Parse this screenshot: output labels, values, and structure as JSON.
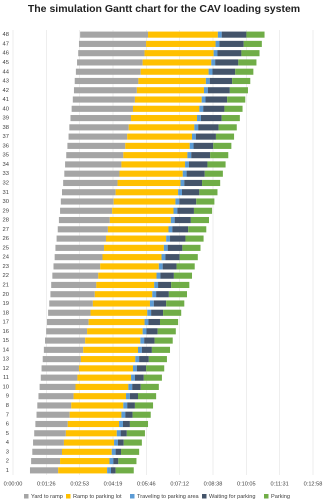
{
  "chart_data": {
    "type": "gantt",
    "title": "The simulation Gantt chart for the CAV loading system",
    "categories": [
      "1",
      "2",
      "3",
      "4",
      "5",
      "6",
      "7",
      "8",
      "9",
      "10",
      "11",
      "12",
      "13",
      "14",
      "15",
      "16",
      "17",
      "18",
      "19",
      "20",
      "21",
      "22",
      "23",
      "24",
      "25",
      "26",
      "27",
      "28",
      "29",
      "30",
      "31",
      "32",
      "33",
      "34",
      "35",
      "36",
      "37",
      "38",
      "39",
      "40",
      "41",
      "42",
      "43",
      "44",
      "45",
      "46",
      "47",
      "48"
    ],
    "start": [
      44,
      47,
      50,
      52,
      55,
      58,
      61,
      63,
      66,
      69,
      72,
      74,
      77,
      80,
      83,
      86,
      88,
      91,
      94,
      97,
      99,
      102,
      105,
      108,
      110,
      113,
      116,
      119,
      122,
      124,
      127,
      130,
      133,
      135,
      138,
      141,
      144,
      146,
      149,
      152,
      155,
      158,
      160,
      163,
      166,
      169,
      171,
      174
    ],
    "series": [
      {
        "name": "Yard to ramp",
        "color": "#a5a5a5",
        "values": [
          73,
          75,
          77,
          80,
          82,
          84,
          86,
          88,
          91,
          93,
          95,
          97,
          99,
          102,
          104,
          106,
          108,
          110,
          113,
          115,
          117,
          119,
          121,
          124,
          126,
          128,
          130,
          132,
          135,
          137,
          139,
          141,
          143,
          146,
          148,
          150,
          152,
          154,
          157,
          159,
          161,
          163,
          165,
          168,
          170,
          172,
          174,
          176
        ]
      },
      {
        "name": "Ramp to parking lot",
        "color": "#ffc000",
        "values": [
          127,
          128,
          129,
          130,
          132,
          133,
          134,
          135,
          136,
          137,
          139,
          140,
          141,
          142,
          143,
          144,
          145,
          147,
          148,
          149,
          150,
          151,
          152,
          153,
          155,
          156,
          157,
          158,
          159,
          160,
          162,
          163,
          164,
          165,
          166,
          167,
          168,
          170,
          171,
          172,
          173,
          174,
          175,
          176,
          178,
          179,
          180,
          181
        ]
      },
      {
        "name": "Traveling to parking area",
        "color": "#5b9bd5",
        "values": [
          10,
          10,
          10,
          10,
          10,
          10,
          10,
          10,
          10,
          10,
          10,
          10,
          10,
          10,
          10,
          10,
          10,
          10,
          10,
          10,
          10,
          10,
          10,
          10,
          10,
          10,
          10,
          10,
          10,
          10,
          10,
          10,
          10,
          10,
          10,
          10,
          10,
          10,
          10,
          10,
          10,
          10,
          10,
          10,
          10,
          10,
          10,
          10
        ]
      },
      {
        "name": "Waiting for parking",
        "color": "#44546a",
        "values": [
          12,
          13,
          14,
          15,
          16,
          18,
          19,
          20,
          21,
          22,
          23,
          24,
          25,
          26,
          27,
          29,
          30,
          31,
          32,
          33,
          34,
          35,
          36,
          37,
          38,
          40,
          41,
          42,
          43,
          44,
          45,
          46,
          47,
          48,
          49,
          51,
          52,
          53,
          54,
          55,
          56,
          57,
          58,
          59,
          60,
          62,
          63,
          64
        ]
      },
      {
        "name": "Parking",
        "color": "#70ad47",
        "values": [
          47,
          47,
          47,
          47,
          47,
          47,
          47,
          47,
          47,
          47,
          47,
          47,
          47,
          47,
          47,
          47,
          47,
          47,
          47,
          47,
          47,
          47,
          47,
          47,
          47,
          47,
          47,
          47,
          47,
          47,
          47,
          47,
          47,
          47,
          47,
          47,
          47,
          47,
          47,
          47,
          47,
          47,
          47,
          47,
          47,
          47,
          47,
          47
        ]
      }
    ],
    "xlim": [
      0,
      777.6
    ],
    "xticks": [
      {
        "value": 0,
        "label": "0:00:00"
      },
      {
        "value": 86.4,
        "label": "0:01:26"
      },
      {
        "value": 172.8,
        "label": "0:02:53"
      },
      {
        "value": 259.2,
        "label": "0:04:19"
      },
      {
        "value": 345.6,
        "label": "0:05:46"
      },
      {
        "value": 432,
        "label": "0:07:12"
      },
      {
        "value": 518.4,
        "label": "0:08:38"
      },
      {
        "value": 604.8,
        "label": "0:10:05"
      },
      {
        "value": 691.2,
        "label": "0:11:31"
      },
      {
        "value": 777.6,
        "label": "0:12:58"
      }
    ],
    "grid": true
  }
}
